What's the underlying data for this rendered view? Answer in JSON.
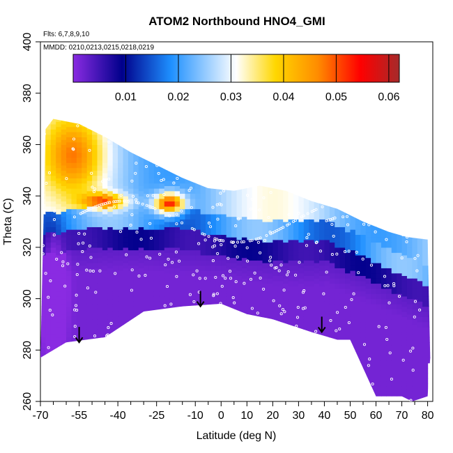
{
  "chart_data": {
    "type": "heatmap",
    "title": "ATOM2 Northbound HNO4_GMI",
    "annotations": {
      "flights": "Flts: 6,7,8,9,10",
      "dates": "MMDD: 0210,0213,0215,0218,0219"
    },
    "xlabel": "Latitude (deg N)",
    "ylabel": "Theta (C)",
    "xlim": [
      -70,
      82
    ],
    "ylim": [
      260,
      400
    ],
    "x_ticks": [
      -70,
      -55,
      -40,
      -25,
      -10,
      0,
      10,
      20,
      30,
      40,
      50,
      60,
      70,
      80
    ],
    "x_minor_ticks": [
      -65,
      -60,
      -50,
      -45,
      -35,
      -30,
      -20,
      -15,
      -5,
      5,
      15,
      25,
      35,
      45,
      55,
      65,
      75
    ],
    "y_ticks": [
      260,
      280,
      300,
      320,
      340,
      360,
      380,
      400
    ],
    "colorbar": {
      "min": 0,
      "max": 0.062,
      "ticks": [
        0.01,
        0.02,
        0.03,
        0.04,
        0.05,
        0.06
      ],
      "tick_labels": [
        "0.01",
        "0.02",
        "0.03",
        "0.04",
        "0.05",
        "0.06"
      ],
      "colors": [
        "#8a2be2",
        "#00008b",
        "#1e90ff",
        "#ffffff",
        "#ffd700",
        "#ff8c00",
        "#ff0000",
        "#a52a2a"
      ]
    },
    "field": {
      "top_boundary": [
        [
          -68,
          366
        ],
        [
          -65,
          370
        ],
        [
          -55,
          368
        ],
        [
          -45,
          363
        ],
        [
          -35,
          357
        ],
        [
          -25,
          352
        ],
        [
          -15,
          347
        ],
        [
          -5,
          343
        ],
        [
          5,
          342
        ],
        [
          15,
          344
        ],
        [
          25,
          342
        ],
        [
          35,
          338
        ],
        [
          45,
          335
        ],
        [
          55,
          330
        ],
        [
          65,
          326
        ],
        [
          72,
          324
        ],
        [
          80,
          323
        ]
      ],
      "bottom_boundary": [
        [
          -70,
          277
        ],
        [
          -60,
          283
        ],
        [
          -45,
          285
        ],
        [
          -30,
          295
        ],
        [
          -15,
          297
        ],
        [
          0,
          298
        ],
        [
          10,
          294
        ],
        [
          20,
          292
        ],
        [
          35,
          287
        ],
        [
          45,
          284
        ],
        [
          50,
          284
        ],
        [
          60,
          262
        ],
        [
          70,
          262
        ],
        [
          74,
          260
        ],
        [
          80,
          262
        ],
        [
          81,
          277
        ]
      ],
      "layers": [
        {
          "name": "upper-tropospheric high",
          "value": 0.04,
          "x_range": [
            -67,
            -45
          ],
          "theta_range": [
            345,
            368
          ]
        },
        {
          "name": "southern band maximum",
          "value": 0.045,
          "x_range": [
            -55,
            -35
          ],
          "theta_range": [
            336,
            341
          ]
        },
        {
          "name": "midlatitude peak",
          "value": 0.055,
          "x_range": [
            -24,
            -15
          ],
          "theta_range": [
            333,
            341
          ]
        },
        {
          "name": "light blue layer",
          "value": 0.022,
          "x_range": [
            -70,
            81
          ],
          "theta_range": [
            325,
            336
          ]
        },
        {
          "name": "dark blue band",
          "value": 0.008,
          "x_range": [
            -70,
            81
          ],
          "theta_range": [
            318,
            326
          ]
        },
        {
          "name": "low-level purple",
          "value": 0.002,
          "x_range": [
            -70,
            81
          ],
          "theta_range": [
            260,
            318
          ]
        }
      ],
      "descent_arrows": [
        {
          "lat": -55,
          "theta_from": 289,
          "theta_to": 283
        },
        {
          "lat": -8,
          "theta_from": 303,
          "theta_to": 297
        },
        {
          "lat": 39,
          "theta_from": 293,
          "theta_to": 287
        }
      ]
    }
  }
}
